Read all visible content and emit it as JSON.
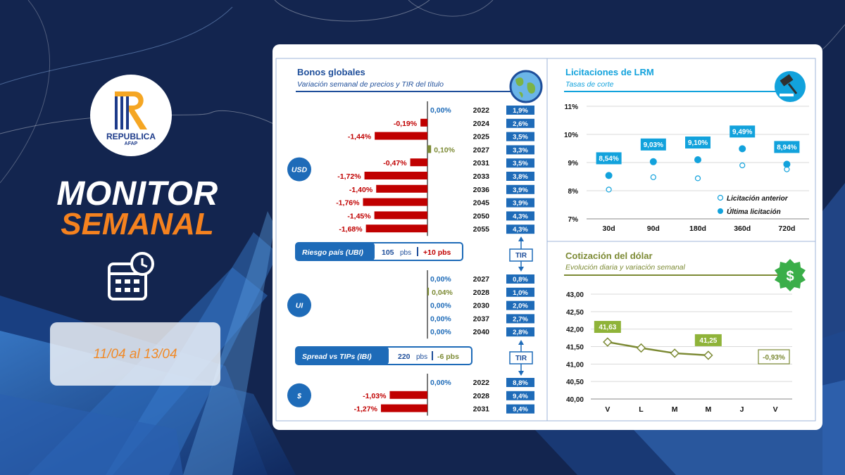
{
  "brand": {
    "name": "REPUBLICA",
    "sub": "AFAP"
  },
  "header": {
    "title_line1": "MONITOR",
    "title_line2": "SEMANAL",
    "date_range": "11/04 al 13/04"
  },
  "colors": {
    "navy": "#13254f",
    "orange": "#f5821f",
    "blue": "#1e6bb8",
    "cyan": "#12a2dc",
    "red": "#c00000",
    "olive": "#7c8a34",
    "green": "#8fb339"
  },
  "icons": {
    "calendar": "calendar-clock-icon",
    "globe": "globe-icon",
    "gavel": "gavel-icon",
    "dollar": "dollar-gear-icon"
  },
  "bonos": {
    "title": "Bonos globales",
    "subtitle": "Variación semanal de precios y TIR del título",
    "tir_label": "TIR",
    "groups": [
      {
        "label": "USD",
        "rows": [
          {
            "var": 0.0,
            "var_label": "0,00%",
            "year": "2022",
            "tir": "1,9%"
          },
          {
            "var": -0.19,
            "var_label": "-0,19%",
            "year": "2024",
            "tir": "2,6%"
          },
          {
            "var": -1.44,
            "var_label": "-1,44%",
            "year": "2025",
            "tir": "3,5%"
          },
          {
            "var": 0.1,
            "var_label": "0,10%",
            "year": "2027",
            "tir": "3,3%"
          },
          {
            "var": -0.47,
            "var_label": "-0,47%",
            "year": "2031",
            "tir": "3,5%"
          },
          {
            "var": -1.72,
            "var_label": "-1,72%",
            "year": "2033",
            "tir": "3,8%"
          },
          {
            "var": -1.4,
            "var_label": "-1,40%",
            "year": "2036",
            "tir": "3,9%"
          },
          {
            "var": -1.76,
            "var_label": "-1,76%",
            "year": "2045",
            "tir": "3,9%"
          },
          {
            "var": -1.45,
            "var_label": "-1,45%",
            "year": "2050",
            "tir": "4,3%"
          },
          {
            "var": -1.68,
            "var_label": "-1,68%",
            "year": "2055",
            "tir": "4,3%"
          }
        ]
      },
      {
        "label": "UI",
        "rows": [
          {
            "var": 0.0,
            "var_label": "0,00%",
            "year": "2027",
            "tir": "0,8%"
          },
          {
            "var": 0.04,
            "var_label": "0,04%",
            "year": "2028",
            "tir": "1,0%"
          },
          {
            "var": 0.0,
            "var_label": "0,00%",
            "year": "2030",
            "tir": "2,0%"
          },
          {
            "var": 0.0,
            "var_label": "0,00%",
            "year": "2037",
            "tir": "2,7%"
          },
          {
            "var": 0.0,
            "var_label": "0,00%",
            "year": "2040",
            "tir": "2,8%"
          }
        ]
      },
      {
        "label": "$",
        "rows": [
          {
            "var": 0.0,
            "var_label": "0,00%",
            "year": "2022",
            "tir": "8,8%"
          },
          {
            "var": -1.03,
            "var_label": "-1,03%",
            "year": "2028",
            "tir": "9,4%"
          },
          {
            "var": -1.27,
            "var_label": "-1,27%",
            "year": "2031",
            "tir": "9,4%"
          }
        ]
      }
    ],
    "riesgo": {
      "label": "Riesgo país (UBI)",
      "value": "105",
      "unit": "pbs",
      "change": "+10 pbs"
    },
    "spread": {
      "label": "Spread vs TIPs (IBI)",
      "value": "220",
      "unit": "pbs",
      "change": "-6 pbs"
    }
  },
  "lrm": {
    "title": "Licitaciones de LRM",
    "subtitle": "Tasas de corte",
    "chart_data": {
      "type": "scatter",
      "categories": [
        "30d",
        "90d",
        "180d",
        "360d",
        "720d"
      ],
      "y_ticks": [
        "11%",
        "10%",
        "9%",
        "8%",
        "7%"
      ],
      "ylim": [
        7,
        11
      ],
      "grid": true,
      "legend_position": "bottom-right",
      "series": [
        {
          "name": "Licitación anterior",
          "values": [
            8.04,
            8.48,
            8.44,
            8.9,
            8.76
          ]
        },
        {
          "name": "Última licitación",
          "values": [
            8.54,
            9.03,
            9.1,
            9.49,
            8.94
          ],
          "labels": [
            "8,54%",
            "9,03%",
            "9,10%",
            "9,49%",
            "8,94%"
          ]
        }
      ]
    }
  },
  "dolar": {
    "title": "Cotización del dólar",
    "subtitle": "Evolución diaria y variación semanal",
    "weekly_change": "-0,93%",
    "chart_data": {
      "type": "line",
      "categories": [
        "V",
        "L",
        "M",
        "M",
        "J",
        "V"
      ],
      "y_ticks": [
        "43,00",
        "42,50",
        "42,00",
        "41,50",
        "41,00",
        "40,50",
        "40,00"
      ],
      "ylim": [
        40,
        43
      ],
      "grid": true,
      "series": [
        {
          "values": [
            41.63,
            41.46,
            41.31,
            41.25,
            null,
            null
          ]
        }
      ],
      "labels": [
        {
          "index": 0,
          "text": "41,63"
        },
        {
          "index": 3,
          "text": "41,25"
        }
      ]
    }
  }
}
